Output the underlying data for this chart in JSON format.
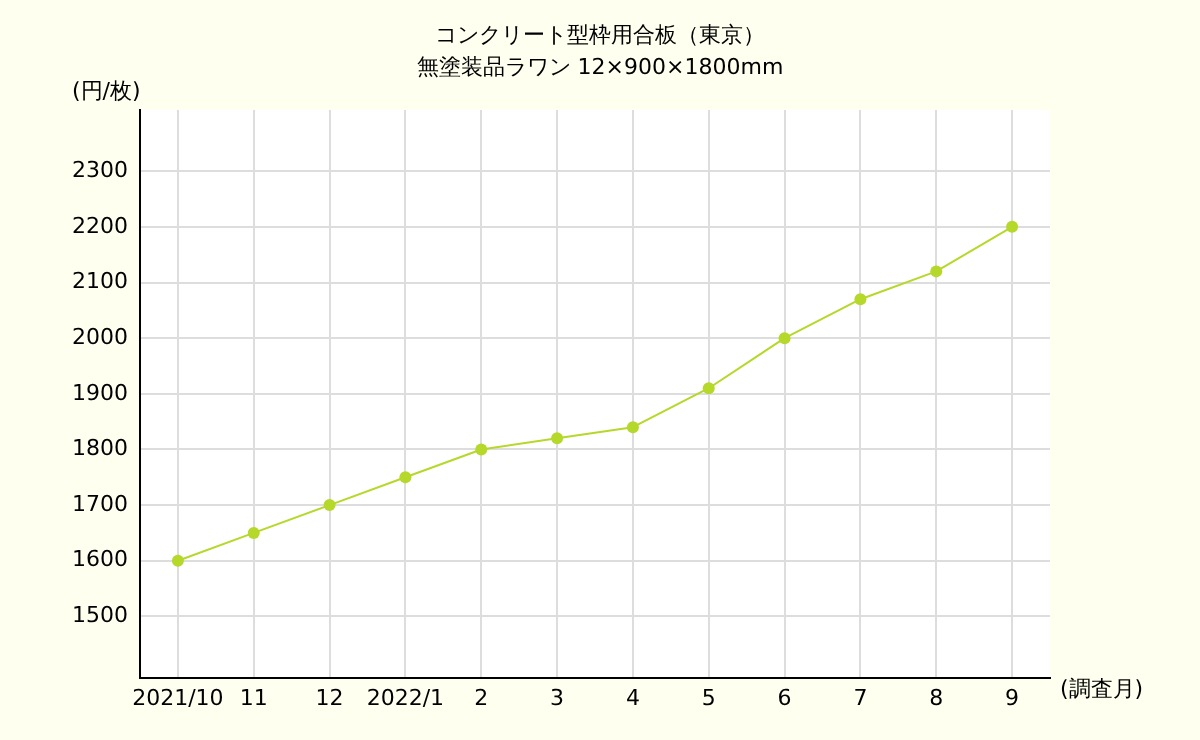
{
  "chart_data": {
    "type": "line",
    "title": "コンクリート型枠用合板（東京）",
    "subtitle": "無塗装品ラワン 12×900×1800mm",
    "ylabel": "(円/枚)",
    "xlabel": "(調査月)",
    "categories": [
      "2021/10",
      "11",
      "12",
      "2022/1",
      "2",
      "3",
      "4",
      "5",
      "6",
      "7",
      "8",
      "9"
    ],
    "series": [
      {
        "color": "#b5d82a",
        "values": [
          1600,
          1650,
          1700,
          1750,
          1800,
          1820,
          1840,
          1910,
          2000,
          2070,
          2120,
          2200
        ]
      }
    ],
    "ylim": [
      1390,
      2410
    ],
    "yticks": [
      1500,
      1600,
      1700,
      1800,
      1900,
      2000,
      2100,
      2200,
      2300
    ],
    "grid": true,
    "legend": false,
    "marker": "circle",
    "line_style": "solid"
  }
}
